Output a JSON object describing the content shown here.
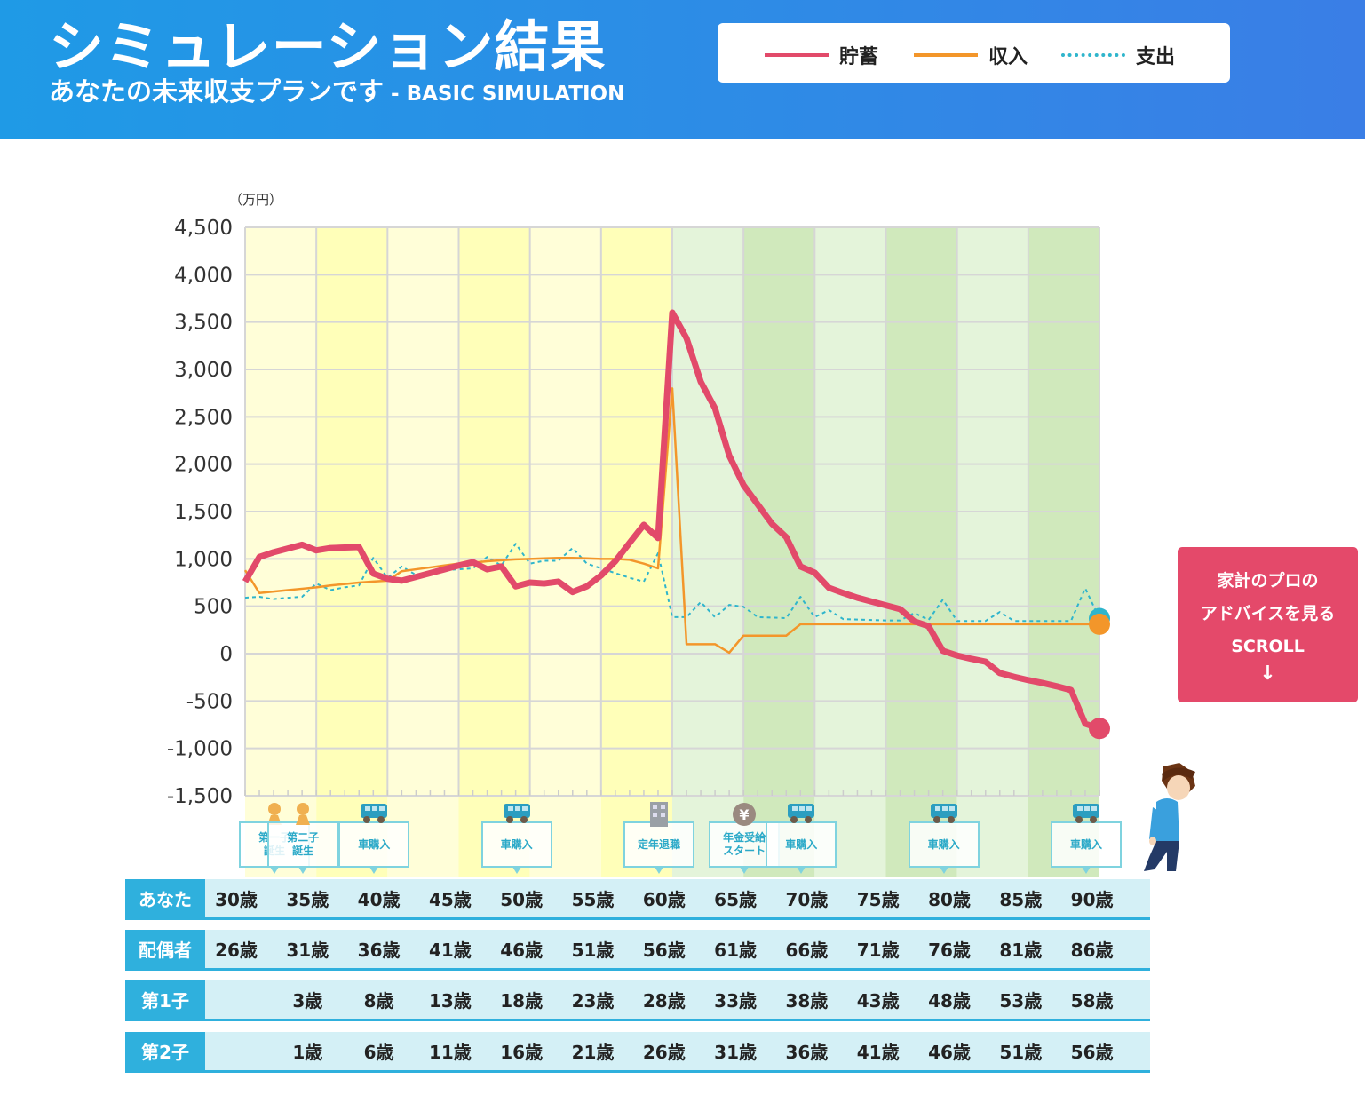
{
  "header": {
    "title": "シミュレーション結果",
    "subtitle": "あなたの未来収支プランです",
    "subtitle_en": " - BASIC SIMULATION",
    "legend": [
      {
        "label": "貯蓄",
        "color": "#e24a6a",
        "style": "solid"
      },
      {
        "label": "収入",
        "color": "#f3962a",
        "style": "solid"
      },
      {
        "label": "支出",
        "color": "#2fb5cc",
        "style": "dotted"
      }
    ]
  },
  "chart_data": {
    "type": "line",
    "unit_label": "（万円）",
    "x": [
      30,
      31,
      32,
      33,
      34,
      35,
      36,
      37,
      38,
      39,
      40,
      41,
      42,
      43,
      44,
      45,
      46,
      47,
      48,
      49,
      50,
      51,
      52,
      53,
      54,
      55,
      56,
      57,
      58,
      59,
      60,
      61,
      62,
      63,
      64,
      65,
      66,
      67,
      68,
      69,
      70,
      71,
      72,
      73,
      74,
      75,
      76,
      77,
      78,
      79,
      80,
      81,
      82,
      83,
      84,
      85,
      86,
      87,
      88,
      89,
      90
    ],
    "xlim": [
      30,
      90
    ],
    "ylim": [
      -1500,
      4500
    ],
    "yticks": [
      "4,500",
      "4,000",
      "3,500",
      "3,000",
      "2,500",
      "2,000",
      "1,500",
      "1,000",
      "500",
      "0",
      "-500",
      "-1,000",
      "-1,500"
    ],
    "ytick_values": [
      4500,
      4000,
      3500,
      3000,
      2500,
      2000,
      1500,
      1000,
      500,
      0,
      -500,
      -1000,
      -1500
    ],
    "grid": true,
    "series": [
      {
        "name": "貯蓄",
        "color": "#e24a6a",
        "values": [
          760,
          1020,
          1070,
          1110,
          1150,
          1090,
          1115,
          1120,
          1125,
          845,
          790,
          770,
          810,
          850,
          890,
          930,
          965,
          890,
          920,
          710,
          750,
          740,
          760,
          650,
          710,
          825,
          975,
          1170,
          1360,
          1220,
          3600,
          3330,
          2870,
          2590,
          2090,
          1780,
          1575,
          1370,
          1230,
          920,
          855,
          695,
          640,
          590,
          550,
          510,
          470,
          340,
          290,
          30,
          -20,
          -55,
          -85,
          -205,
          -245,
          -280,
          -310,
          -345,
          -385,
          -740,
          -790
        ]
      },
      {
        "name": "収入",
        "color": "#f3962a",
        "values": [
          880,
          640,
          655,
          670,
          685,
          700,
          720,
          735,
          750,
          760,
          770,
          870,
          890,
          910,
          930,
          950,
          960,
          975,
          985,
          995,
          1000,
          1005,
          1010,
          1010,
          1005,
          1000,
          1000,
          990,
          950,
          900,
          2800,
          100,
          100,
          100,
          10,
          190,
          190,
          190,
          190,
          310,
          310,
          310,
          310,
          310,
          310,
          310,
          310,
          310,
          310,
          310,
          310,
          310,
          310,
          310,
          310,
          310,
          310,
          310,
          310,
          310,
          310
        ]
      },
      {
        "name": "支出",
        "color": "#2fb5cc",
        "values": [
          590,
          600,
          575,
          590,
          600,
          740,
          670,
          700,
          720,
          1010,
          800,
          920,
          830,
          860,
          880,
          890,
          900,
          1020,
          930,
          1160,
          950,
          980,
          980,
          1115,
          950,
          900,
          850,
          800,
          760,
          1060,
          385,
          385,
          545,
          385,
          515,
          495,
          385,
          380,
          375,
          600,
          385,
          460,
          365,
          360,
          355,
          350,
          350,
          430,
          355,
          570,
          345,
          345,
          345,
          440,
          345,
          345,
          345,
          345,
          345,
          690,
          370
        ]
      }
    ],
    "bands": {
      "working_colors": [
        "#fffed8",
        "#ffffb9"
      ],
      "retired_colors": [
        "#e4f4da",
        "#d0e9bc"
      ],
      "retirement_age": 60
    }
  },
  "events": [
    {
      "age": 32,
      "label": "第一子\n誕生",
      "icon": "baby-icon"
    },
    {
      "age": 34,
      "label": "第二子\n誕生",
      "icon": "baby-icon"
    },
    {
      "age": 39,
      "label": "車購入",
      "icon": "car-icon"
    },
    {
      "age": 49,
      "label": "車購入",
      "icon": "car-icon"
    },
    {
      "age": 59,
      "label": "定年退職",
      "icon": "building-icon"
    },
    {
      "age": 65,
      "label": "年金受給\nスタート",
      "icon": "yen-coin-icon"
    },
    {
      "age": 69,
      "label": "車購入",
      "icon": "car-icon"
    },
    {
      "age": 79,
      "label": "車購入",
      "icon": "car-icon"
    },
    {
      "age": 89,
      "label": "車購入",
      "icon": "car-icon"
    }
  ],
  "age_table": [
    {
      "label": "あなた",
      "cells": [
        "30歳",
        "35歳",
        "40歳",
        "45歳",
        "50歳",
        "55歳",
        "60歳",
        "65歳",
        "70歳",
        "75歳",
        "80歳",
        "85歳",
        "90歳"
      ]
    },
    {
      "label": "配偶者",
      "cells": [
        "26歳",
        "31歳",
        "36歳",
        "41歳",
        "46歳",
        "51歳",
        "56歳",
        "61歳",
        "66歳",
        "71歳",
        "76歳",
        "81歳",
        "86歳"
      ]
    },
    {
      "label": "第1子",
      "cells": [
        "",
        "3歳",
        "8歳",
        "13歳",
        "18歳",
        "23歳",
        "28歳",
        "33歳",
        "38歳",
        "43歳",
        "48歳",
        "53歳",
        "58歳"
      ]
    },
    {
      "label": "第2子",
      "cells": [
        "",
        "1歳",
        "6歳",
        "11歳",
        "16歳",
        "21歳",
        "26歳",
        "31歳",
        "36歳",
        "41歳",
        "46歳",
        "51歳",
        "56歳"
      ]
    }
  ],
  "scroll_button": {
    "line1": "家計のプロの",
    "line2": "アドバイスを見る",
    "line3": "SCROLL",
    "arrow": "↓"
  }
}
